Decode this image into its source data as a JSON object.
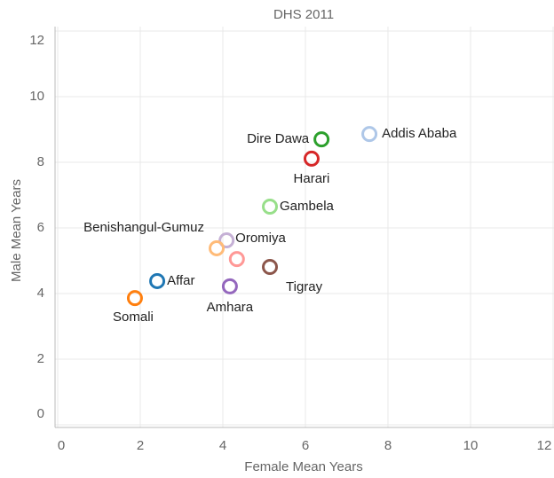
{
  "chart_data": {
    "type": "scatter",
    "title": "DHS 2011",
    "xlabel": "Female Mean Years",
    "ylabel": "Male Mean Years",
    "categories": [
      "Addis Ababa",
      "Dire Dawa",
      "Harari",
      "Gambela",
      "Oromiya",
      "Benishangul-Gumuz",
      null,
      "Tigray",
      "Affar",
      "Amhara",
      "Somali"
    ],
    "x": [
      7.55,
      6.39,
      6.15,
      5.14,
      4.09,
      3.85,
      4.34,
      5.14,
      2.41,
      4.17,
      1.87
    ],
    "values": [
      8.86,
      8.7,
      8.11,
      6.65,
      5.62,
      5.38,
      5.05,
      4.81,
      4.38,
      4.22,
      3.86
    ],
    "colors": [
      "#aec7e8",
      "#2ca02c",
      "#d62728",
      "#98df8a",
      "#c5b0d5",
      "#ffbb78",
      "#ff9896",
      "#8c564b",
      "#1f77b4",
      "#9467bd",
      "#ff7f0e"
    ],
    "xlim": [
      0,
      12
    ],
    "xticks": [
      0,
      2,
      4,
      6,
      8,
      10,
      12
    ],
    "ylim": [
      0,
      12
    ],
    "yticks": [
      0,
      2,
      4,
      6,
      8,
      10,
      12
    ],
    "grid": true
  }
}
